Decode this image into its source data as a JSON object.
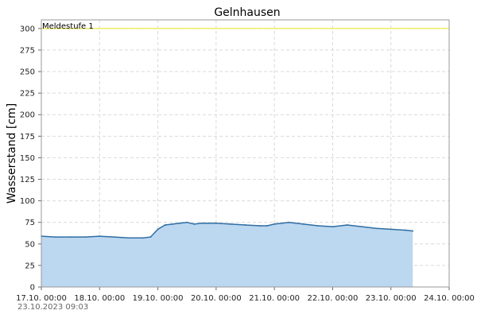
{
  "chart_data": {
    "type": "area",
    "title": "Gelnhausen",
    "xlabel": "",
    "ylabel": "Wasserstand [cm]",
    "ylim": [
      0,
      310
    ],
    "xlim": [
      "2023-10-17 00:00",
      "2023-10-24 00:00"
    ],
    "y_ticks": [
      0,
      25,
      50,
      75,
      100,
      125,
      150,
      175,
      200,
      225,
      250,
      275,
      300
    ],
    "x_ticks": [
      "17.10. 00:00",
      "18.10. 00:00",
      "19.10. 00:00",
      "20.10. 00:00",
      "21.10. 00:00",
      "22.10. 00:00",
      "23.10. 00:00",
      "24.10. 00:00"
    ],
    "grid": true,
    "threshold": {
      "label": "Meldestufe 1",
      "value": 300,
      "color": "#e8e820"
    },
    "series_color": "#2f6ea3",
    "fill_color": "#bcd7f0",
    "series": [
      {
        "x": [
          "2023-10-17 00:00",
          "2023-10-17 06:00",
          "2023-10-17 12:00",
          "2023-10-17 18:00",
          "2023-10-18 00:00",
          "2023-10-18 06:00",
          "2023-10-18 12:00",
          "2023-10-18 18:00",
          "2023-10-18 21:00",
          "2023-10-19 00:00",
          "2023-10-19 03:00",
          "2023-10-19 06:00",
          "2023-10-19 09:00",
          "2023-10-19 12:00",
          "2023-10-19 15:00",
          "2023-10-19 18:00",
          "2023-10-20 00:00",
          "2023-10-20 06:00",
          "2023-10-20 12:00",
          "2023-10-20 18:00",
          "2023-10-20 21:00",
          "2023-10-21 00:00",
          "2023-10-21 06:00",
          "2023-10-21 12:00",
          "2023-10-21 18:00",
          "2023-10-22 00:00",
          "2023-10-22 06:00",
          "2023-10-22 12:00",
          "2023-10-22 18:00",
          "2023-10-23 00:00",
          "2023-10-23 06:00",
          "2023-10-23 09:00"
        ],
        "values": [
          59,
          58,
          58,
          58,
          59,
          58,
          57,
          57,
          58,
          67,
          72,
          73,
          74,
          75,
          73,
          74,
          74,
          73,
          72,
          71,
          71,
          73,
          75,
          73,
          71,
          70,
          72,
          70,
          68,
          67,
          66,
          65
        ]
      }
    ],
    "timestamp": "23.10.2023  09:03"
  }
}
